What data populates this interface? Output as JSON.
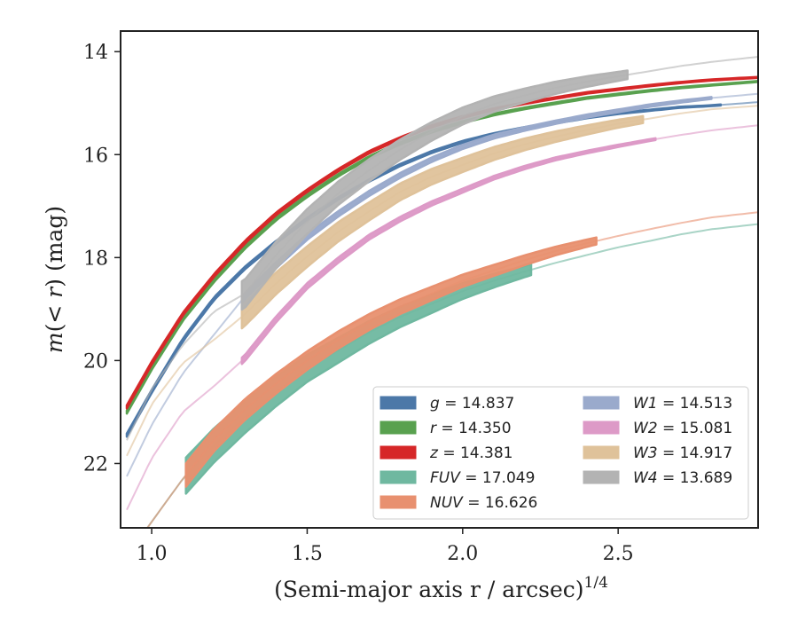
{
  "chart_data": {
    "type": "line",
    "xlabel_main": "(Semi-major axis r / arcsec)",
    "xlabel_exp": "1/4",
    "ylabel": "m(< r) (mag)",
    "xlim": [
      0.9,
      2.95
    ],
    "ylim": [
      23.25,
      13.6
    ],
    "xticks": [
      1.0,
      1.5,
      2.0,
      2.5
    ],
    "xtick_labels": [
      "1.0",
      "1.5",
      "2.0",
      "2.5"
    ],
    "yticks": [
      14,
      16,
      18,
      20,
      22
    ],
    "ytick_labels": [
      "14",
      "16",
      "18",
      "20",
      "22"
    ],
    "grid": false,
    "legend_position": "lower-right",
    "series": [
      {
        "name": "g = 14.837",
        "band": "g",
        "mag": "14.837",
        "color": "#4c78a8",
        "points": [
          [
            0.92,
            21.45
          ],
          [
            1.0,
            20.6
          ],
          [
            1.1,
            19.6
          ],
          [
            1.2,
            18.8
          ],
          [
            1.3,
            18.2
          ],
          [
            1.4,
            17.7
          ],
          [
            1.5,
            17.25
          ],
          [
            1.6,
            16.85
          ],
          [
            1.7,
            16.5
          ],
          [
            1.8,
            16.2
          ],
          [
            1.9,
            15.95
          ],
          [
            2.0,
            15.75
          ],
          [
            2.1,
            15.6
          ],
          [
            2.2,
            15.48
          ],
          [
            2.3,
            15.38
          ],
          [
            2.4,
            15.28
          ],
          [
            2.5,
            15.2
          ],
          [
            2.6,
            15.14
          ],
          [
            2.7,
            15.08
          ],
          [
            2.8,
            15.05
          ],
          [
            2.95,
            14.98
          ]
        ],
        "solid_range": [
          0.92,
          2.83
        ],
        "band_width": 0.06
      },
      {
        "name": "r = 14.350",
        "band": "r",
        "mag": "14.350",
        "color": "#59a14f",
        "points": [
          [
            0.92,
            21.0
          ],
          [
            1.0,
            20.15
          ],
          [
            1.1,
            19.2
          ],
          [
            1.2,
            18.45
          ],
          [
            1.3,
            17.8
          ],
          [
            1.4,
            17.25
          ],
          [
            1.5,
            16.8
          ],
          [
            1.6,
            16.4
          ],
          [
            1.7,
            16.05
          ],
          [
            1.8,
            15.78
          ],
          [
            1.9,
            15.55
          ],
          [
            2.0,
            15.37
          ],
          [
            2.1,
            15.22
          ],
          [
            2.2,
            15.1
          ],
          [
            2.3,
            15.0
          ],
          [
            2.4,
            14.9
          ],
          [
            2.5,
            14.83
          ],
          [
            2.6,
            14.76
          ],
          [
            2.7,
            14.7
          ],
          [
            2.8,
            14.65
          ],
          [
            2.95,
            14.58
          ]
        ],
        "solid_range": [
          0.92,
          2.95
        ],
        "band_width": 0.06
      },
      {
        "name": "z = 14.381",
        "band": "z",
        "mag": "14.381",
        "color": "#d62728",
        "points": [
          [
            0.92,
            20.9
          ],
          [
            1.0,
            20.05
          ],
          [
            1.1,
            19.1
          ],
          [
            1.2,
            18.35
          ],
          [
            1.3,
            17.7
          ],
          [
            1.4,
            17.15
          ],
          [
            1.5,
            16.7
          ],
          [
            1.6,
            16.3
          ],
          [
            1.7,
            15.95
          ],
          [
            1.8,
            15.68
          ],
          [
            1.9,
            15.45
          ],
          [
            2.0,
            15.27
          ],
          [
            2.1,
            15.12
          ],
          [
            2.2,
            15.0
          ],
          [
            2.3,
            14.9
          ],
          [
            2.4,
            14.8
          ],
          [
            2.5,
            14.73
          ],
          [
            2.6,
            14.66
          ],
          [
            2.7,
            14.6
          ],
          [
            2.8,
            14.55
          ],
          [
            2.95,
            14.5
          ]
        ],
        "solid_range": [
          0.92,
          2.95
        ],
        "band_width": 0.06
      },
      {
        "name": "FUV = 17.049",
        "band": "FUV",
        "mag": "17.049",
        "color": "#6fb8a0",
        "points": [
          [
            0.98,
            23.3
          ],
          [
            1.1,
            22.3
          ],
          [
            1.2,
            21.65
          ],
          [
            1.3,
            21.1
          ],
          [
            1.4,
            20.6
          ],
          [
            1.5,
            20.15
          ],
          [
            1.6,
            19.8
          ],
          [
            1.7,
            19.45
          ],
          [
            1.8,
            19.15
          ],
          [
            1.9,
            18.9
          ],
          [
            2.0,
            18.65
          ],
          [
            2.1,
            18.45
          ],
          [
            2.2,
            18.27
          ],
          [
            2.3,
            18.1
          ],
          [
            2.4,
            17.95
          ],
          [
            2.5,
            17.8
          ],
          [
            2.6,
            17.68
          ],
          [
            2.7,
            17.55
          ],
          [
            2.8,
            17.45
          ],
          [
            2.95,
            17.35
          ]
        ],
        "solid_range": [
          1.11,
          2.22
        ],
        "band_width": 0.7
      },
      {
        "name": "NUV = 16.626",
        "band": "NUV",
        "mag": "16.626",
        "color": "#e8906f",
        "points": [
          [
            0.98,
            23.3
          ],
          [
            1.1,
            22.3
          ],
          [
            1.2,
            21.55
          ],
          [
            1.3,
            20.95
          ],
          [
            1.4,
            20.45
          ],
          [
            1.5,
            20.0
          ],
          [
            1.6,
            19.6
          ],
          [
            1.7,
            19.25
          ],
          [
            1.8,
            18.95
          ],
          [
            1.9,
            18.7
          ],
          [
            2.0,
            18.45
          ],
          [
            2.1,
            18.25
          ],
          [
            2.2,
            18.05
          ],
          [
            2.3,
            17.87
          ],
          [
            2.4,
            17.72
          ],
          [
            2.5,
            17.58
          ],
          [
            2.6,
            17.45
          ],
          [
            2.7,
            17.33
          ],
          [
            2.8,
            17.22
          ],
          [
            2.95,
            17.12
          ]
        ],
        "solid_range": [
          1.11,
          2.43
        ],
        "band_width": 0.45
      },
      {
        "name": "W1 = 14.513",
        "band": "W1",
        "mag": "14.513",
        "color": "#9aaacc",
        "points": [
          [
            0.92,
            22.25
          ],
          [
            1.0,
            21.25
          ],
          [
            1.1,
            20.25
          ],
          [
            1.2,
            19.5
          ],
          [
            1.3,
            18.75
          ],
          [
            1.4,
            18.15
          ],
          [
            1.5,
            17.6
          ],
          [
            1.6,
            17.15
          ],
          [
            1.7,
            16.75
          ],
          [
            1.8,
            16.4
          ],
          [
            1.9,
            16.1
          ],
          [
            2.0,
            15.85
          ],
          [
            2.1,
            15.65
          ],
          [
            2.2,
            15.5
          ],
          [
            2.3,
            15.37
          ],
          [
            2.4,
            15.25
          ],
          [
            2.5,
            15.15
          ],
          [
            2.6,
            15.05
          ],
          [
            2.7,
            14.97
          ],
          [
            2.8,
            14.9
          ],
          [
            2.95,
            14.82
          ]
        ],
        "solid_range": [
          1.29,
          2.8
        ],
        "band_width": 0.12
      },
      {
        "name": "W2 = 15.081",
        "band": "W2",
        "mag": "15.081",
        "color": "#dd9ac7",
        "points": [
          [
            0.92,
            22.9
          ],
          [
            1.0,
            21.9
          ],
          [
            1.1,
            21.0
          ],
          [
            1.2,
            20.5
          ],
          [
            1.3,
            19.95
          ],
          [
            1.4,
            19.2
          ],
          [
            1.5,
            18.55
          ],
          [
            1.6,
            18.05
          ],
          [
            1.7,
            17.6
          ],
          [
            1.8,
            17.25
          ],
          [
            1.9,
            16.95
          ],
          [
            2.0,
            16.7
          ],
          [
            2.1,
            16.45
          ],
          [
            2.2,
            16.25
          ],
          [
            2.3,
            16.08
          ],
          [
            2.4,
            15.95
          ],
          [
            2.5,
            15.83
          ],
          [
            2.6,
            15.72
          ],
          [
            2.7,
            15.62
          ],
          [
            2.8,
            15.53
          ],
          [
            2.95,
            15.43
          ]
        ],
        "solid_range": [
          1.29,
          2.62
        ],
        "band_width": 0.12
      },
      {
        "name": "W3 = 14.917",
        "band": "W3",
        "mag": "14.917",
        "color": "#dfc29a",
        "points": [
          [
            0.92,
            21.85
          ],
          [
            1.0,
            20.85
          ],
          [
            1.1,
            20.05
          ],
          [
            1.2,
            19.6
          ],
          [
            1.3,
            19.1
          ],
          [
            1.4,
            18.5
          ],
          [
            1.5,
            17.98
          ],
          [
            1.6,
            17.5
          ],
          [
            1.7,
            17.1
          ],
          [
            1.8,
            16.72
          ],
          [
            1.9,
            16.43
          ],
          [
            2.0,
            16.2
          ],
          [
            2.1,
            15.98
          ],
          [
            2.2,
            15.8
          ],
          [
            2.3,
            15.65
          ],
          [
            2.4,
            15.52
          ],
          [
            2.5,
            15.4
          ],
          [
            2.6,
            15.3
          ],
          [
            2.7,
            15.2
          ],
          [
            2.8,
            15.12
          ],
          [
            2.95,
            15.05
          ]
        ],
        "solid_range": [
          1.29,
          2.58
        ],
        "band_width": 0.45
      },
      {
        "name": "W4 = 13.689",
        "band": "W4",
        "mag": "13.689",
        "color": "#b3b3b3",
        "points": [
          [
            0.92,
            21.55
          ],
          [
            1.0,
            20.55
          ],
          [
            1.1,
            19.7
          ],
          [
            1.2,
            19.05
          ],
          [
            1.3,
            18.7
          ],
          [
            1.4,
            17.95
          ],
          [
            1.5,
            17.3
          ],
          [
            1.6,
            16.75
          ],
          [
            1.7,
            16.3
          ],
          [
            1.8,
            15.9
          ],
          [
            1.9,
            15.55
          ],
          [
            2.0,
            15.25
          ],
          [
            2.1,
            15.02
          ],
          [
            2.2,
            14.85
          ],
          [
            2.3,
            14.7
          ],
          [
            2.4,
            14.58
          ],
          [
            2.5,
            14.48
          ],
          [
            2.6,
            14.38
          ],
          [
            2.7,
            14.28
          ],
          [
            2.8,
            14.2
          ],
          [
            2.95,
            14.1
          ]
        ],
        "solid_range": [
          1.29,
          2.53
        ],
        "band_width": 0.55
      }
    ]
  }
}
